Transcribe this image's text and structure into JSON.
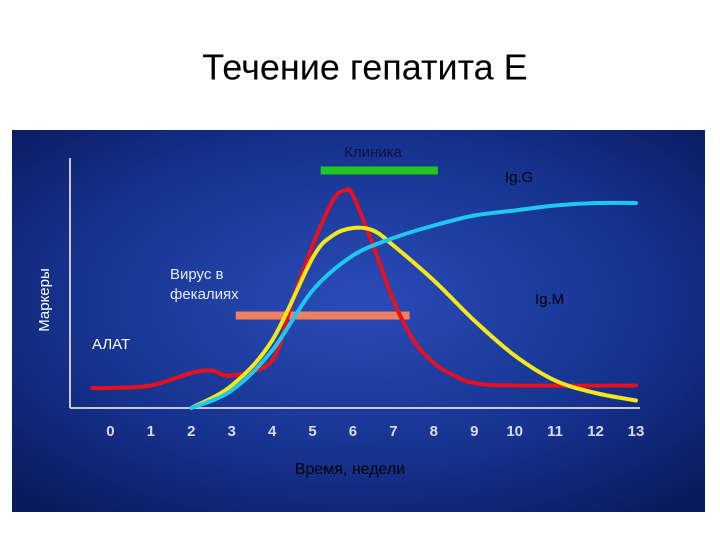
{
  "chart_data": {
    "type": "line",
    "title": "Течение гепатита Е",
    "x_label": "Время, недели",
    "y_label": "Маркеры",
    "xlim": [
      -1,
      13.1
    ],
    "ylim": [
      0,
      100
    ],
    "xticks": [
      0,
      1,
      2,
      3,
      4,
      5,
      6,
      7,
      8,
      9,
      10,
      11,
      12,
      13
    ],
    "series": [
      {
        "name": "АЛАТ",
        "color": "#e8101a",
        "x": [
          -0.45,
          0,
          1,
          2,
          2.5,
          3,
          4,
          4.5,
          5,
          5.5,
          5.8,
          6,
          6.5,
          7,
          7.5,
          8,
          8.5,
          9,
          10,
          13
        ],
        "values": [
          8,
          8,
          9,
          14,
          15,
          13,
          19,
          43,
          65,
          83,
          87,
          85,
          65,
          43,
          27,
          18,
          13,
          10,
          9,
          9
        ]
      },
      {
        "name": "Ig.M",
        "color": "#f2e81a",
        "x": [
          2,
          3,
          4,
          5,
          5.5,
          6,
          6.5,
          7,
          8,
          9,
          10,
          11,
          12,
          13
        ],
        "values": [
          0,
          9,
          27,
          60,
          69,
          72,
          71,
          65,
          51,
          35,
          21,
          11,
          6,
          3
        ]
      },
      {
        "name": "Ig.G",
        "color": "#1ec8f0",
        "x": [
          2,
          3,
          4,
          5,
          6,
          7,
          8,
          9,
          10,
          11,
          12,
          13
        ],
        "values": [
          0,
          7,
          23,
          47,
          61,
          68,
          73,
          77,
          79,
          81,
          82,
          82
        ]
      }
    ],
    "ranges": [
      {
        "label": "Клиника",
        "color": "#1ec81e",
        "start": 5.2,
        "end": 8.1,
        "level": 95
      },
      {
        "label": "Вирус в фекалиях",
        "color": "#f08060",
        "start": 3.1,
        "end": 7.4,
        "level": 37
      }
    ]
  }
}
